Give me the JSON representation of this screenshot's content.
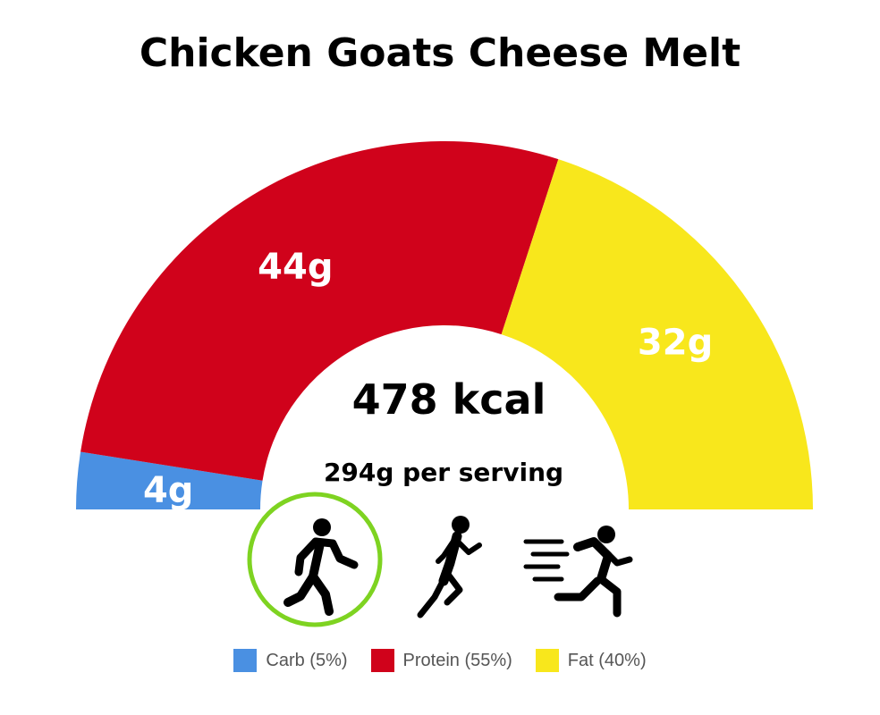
{
  "chart_data": {
    "type": "pie",
    "variant": "half-donut",
    "title": "Chicken Goats Cheese Melt",
    "center_value": "478 kcal",
    "center_sub": "294g per serving",
    "slices": [
      {
        "name": "Carb",
        "grams_label": "4g",
        "percent": 5,
        "legend_label": "Carb (5%)",
        "color": "#4a90e2"
      },
      {
        "name": "Protein",
        "grams_label": "44g",
        "percent": 55,
        "legend_label": "Protein (55%)",
        "color": "#d0021b"
      },
      {
        "name": "Fat",
        "grams_label": "32g",
        "percent": 40,
        "legend_label": "Fat (40%)",
        "color": "#f8e71c"
      }
    ]
  },
  "activity_icons": [
    {
      "icon": "walking-icon",
      "selected": true,
      "ring_color": "#7ed321"
    },
    {
      "icon": "jogging-icon",
      "selected": false
    },
    {
      "icon": "sprinting-icon",
      "selected": false
    }
  ]
}
